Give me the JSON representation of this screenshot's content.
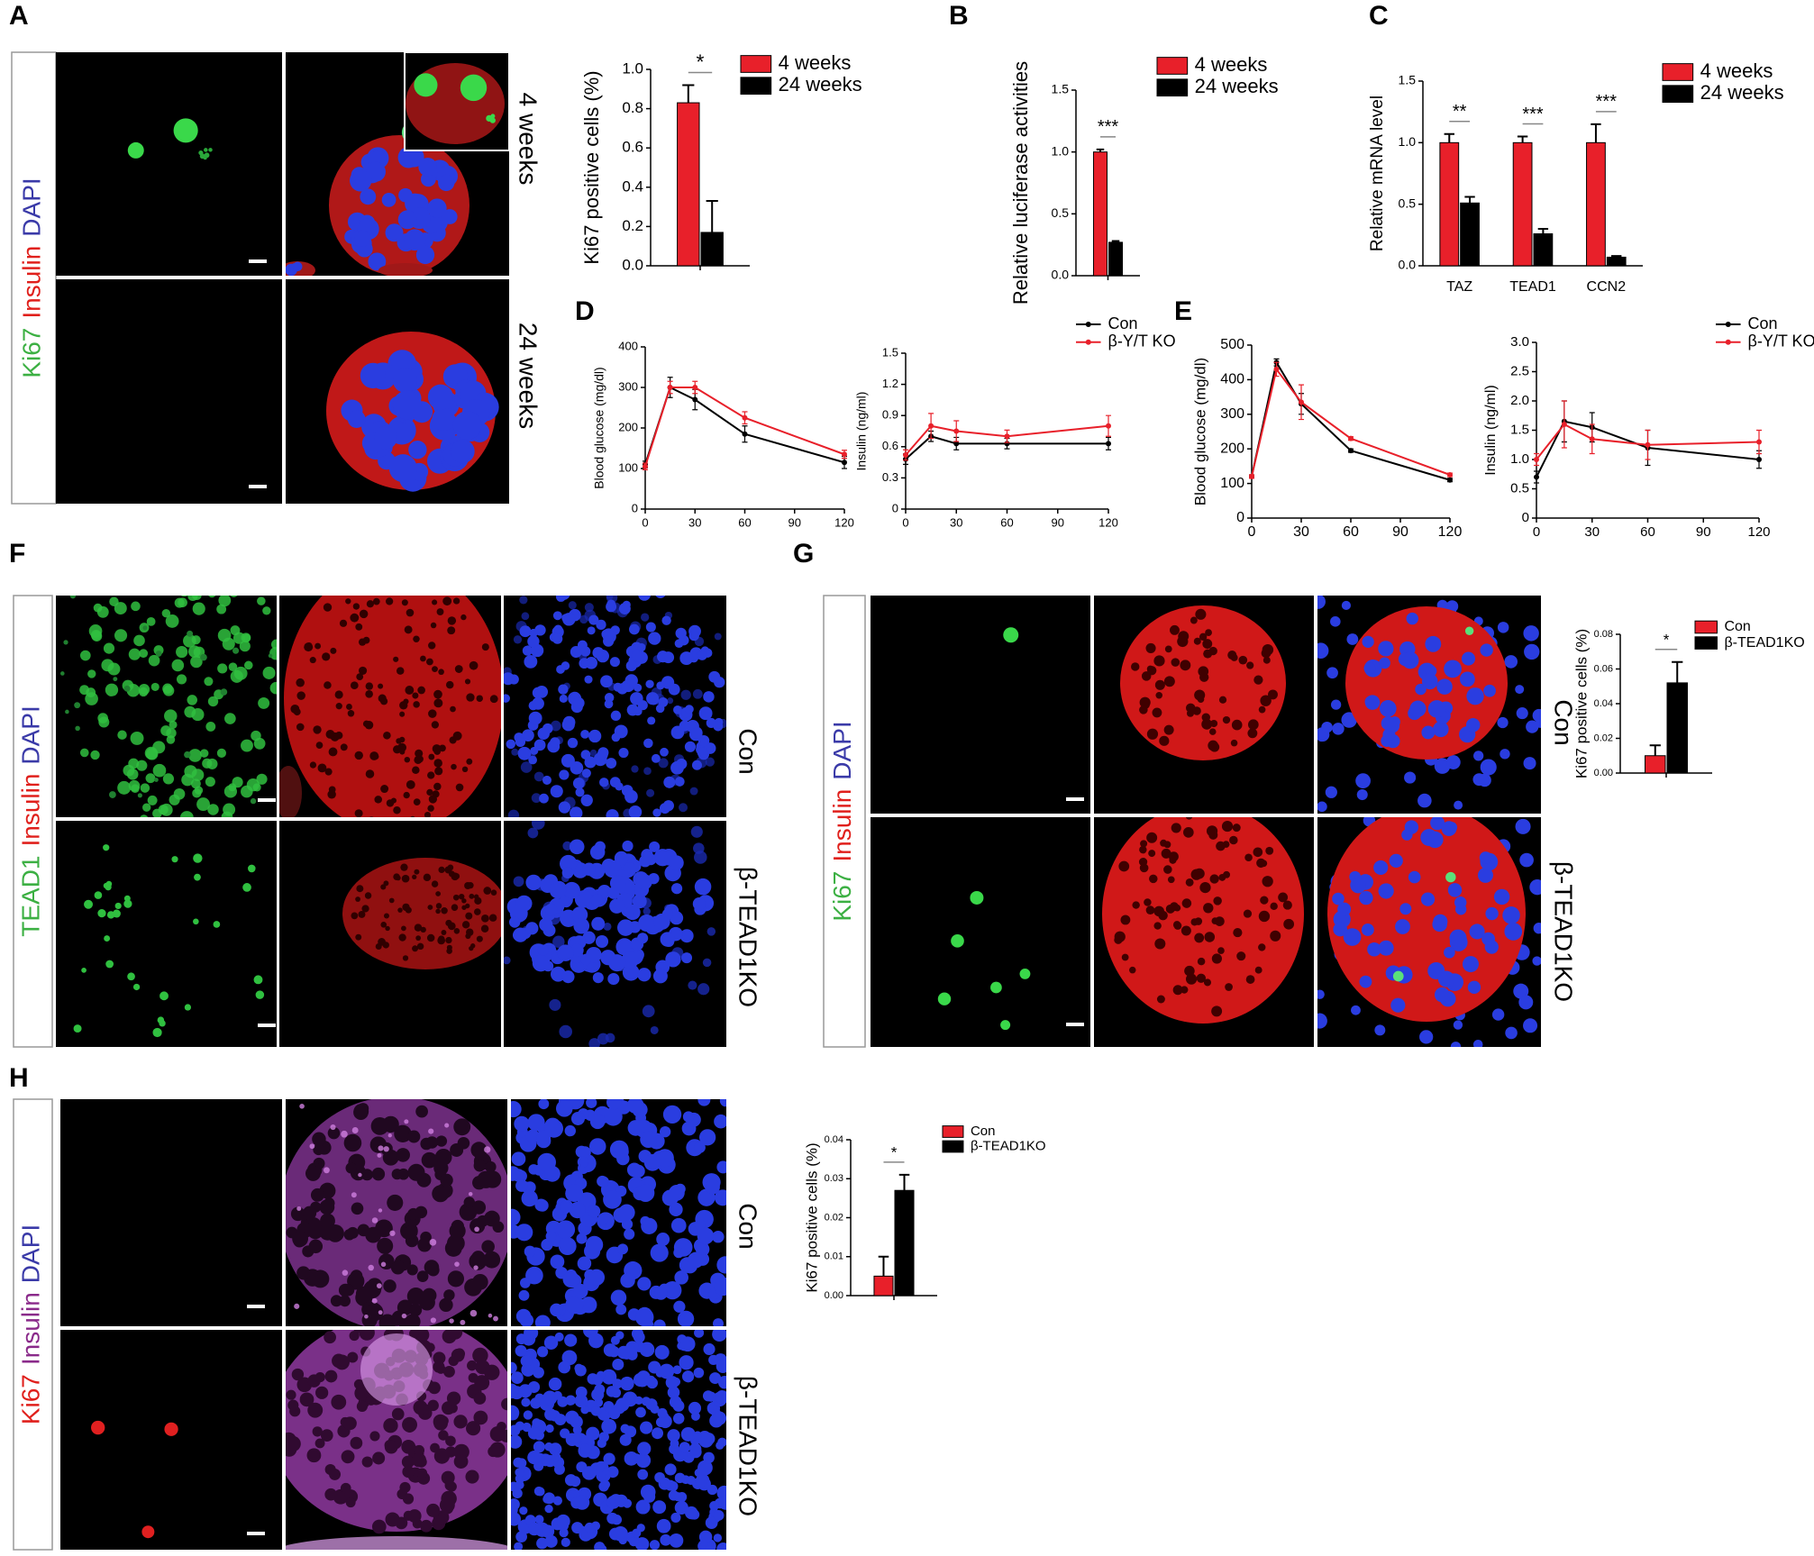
{
  "figure": {
    "A": {
      "letter": "A",
      "stains": [
        {
          "text": "Ki67",
          "color": "#3cb043"
        },
        {
          "text": "Insulin",
          "color": "#e0201c"
        },
        {
          "text": "DAPI",
          "color": "#3a3aa8"
        }
      ],
      "rows": [
        "4 weeks",
        "24 weeks"
      ]
    },
    "B": {
      "letter": "B"
    },
    "C": {
      "letter": "C"
    },
    "D": {
      "letter": "D"
    },
    "E": {
      "letter": "E"
    },
    "F": {
      "letter": "F",
      "stains": [
        {
          "text": "TEAD1",
          "color": "#3cb043"
        },
        {
          "text": "Insulin",
          "color": "#e0201c"
        },
        {
          "text": "DAPI",
          "color": "#3a3aa8"
        }
      ],
      "rows": [
        "Con",
        "β-TEAD1KO"
      ]
    },
    "G": {
      "letter": "G",
      "stains": [
        {
          "text": "Ki67",
          "color": "#3cb043"
        },
        {
          "text": "Insulin",
          "color": "#e0201c"
        },
        {
          "text": "DAPI",
          "color": "#3a3aa8"
        }
      ],
      "rows": [
        "Con",
        "β-TEAD1KO"
      ]
    },
    "H": {
      "letter": "H",
      "stains": [
        {
          "text": "Ki67",
          "color": "#e0201c"
        },
        {
          "text": "Insulin",
          "color": "#8a2a8a"
        },
        {
          "text": "DAPI",
          "color": "#3a3aa8"
        }
      ],
      "rows": [
        "Con",
        "β-TEAD1KO"
      ]
    }
  },
  "chart_data": [
    {
      "type": "bar",
      "ylabel": "Ki67 positive cells (%)",
      "categories": [
        null
      ],
      "series": [
        {
          "name": "4 weeks",
          "color": "#e8202a",
          "values": [
            0.83
          ],
          "errors": [
            0.09
          ]
        },
        {
          "name": "24 weeks",
          "color": "#000000",
          "values": [
            0.17
          ],
          "errors": [
            0.16
          ]
        }
      ],
      "ylim": [
        0,
        1.0
      ],
      "yticks": [
        {
          "value": 0,
          "label": "0.0"
        },
        0.2,
        0.4,
        0.6,
        0.8,
        {
          "value": 1,
          "label": "1.0"
        }
      ],
      "annotations": [
        "*"
      ]
    },
    {
      "type": "bar",
      "ylabel": "Relative luciferase activities",
      "categories": [
        null
      ],
      "series": [
        {
          "name": "4 weeks",
          "color": "#e8202a",
          "values": [
            1.0
          ],
          "errors": [
            0.02
          ]
        },
        {
          "name": "24 weeks",
          "color": "#000000",
          "values": [
            0.27
          ],
          "errors": [
            0.01
          ]
        }
      ],
      "ylim": [
        0,
        1.5
      ],
      "yticks": [
        {
          "value": 0,
          "label": "0.0"
        },
        0.5,
        {
          "value": 1,
          "label": "1.0"
        },
        1.5
      ],
      "annotations": [
        "***"
      ]
    },
    {
      "type": "bar",
      "ylabel": "Relative mRNA level",
      "categories": [
        "TAZ",
        "TEAD1",
        "CCN2"
      ],
      "series": [
        {
          "name": "4 weeks",
          "color": "#e8202a",
          "values": [
            1.0,
            1.0,
            1.0
          ],
          "errors": [
            0.07,
            0.05,
            0.15
          ]
        },
        {
          "name": "24 weeks",
          "color": "#000000",
          "values": [
            0.51,
            0.26,
            0.07
          ],
          "errors": [
            0.05,
            0.04,
            0.01
          ]
        }
      ],
      "ylim": [
        0,
        1.5
      ],
      "yticks": [
        {
          "value": 0,
          "label": "0.0"
        },
        0.5,
        {
          "value": 1,
          "label": "1.0"
        },
        1.5
      ],
      "annotations": [
        "**",
        "***",
        "***"
      ]
    },
    {
      "type": "line",
      "ylabel": "Blood glucose (mg/dl)",
      "x": [
        0,
        15,
        30,
        60,
        120
      ],
      "series": [
        {
          "color": "#000000",
          "values": [
            110,
            300,
            270,
            185,
            115
          ],
          "errors": [
            8,
            25,
            25,
            20,
            15
          ]
        },
        {
          "color": "#e8202a",
          "values": [
            105,
            300,
            300,
            225,
            135
          ],
          "errors": [
            8,
            15,
            15,
            15,
            10
          ]
        }
      ],
      "xlim": [
        0,
        120
      ],
      "xticks": [
        0,
        30,
        60,
        90,
        120
      ],
      "ylim": [
        0,
        400
      ],
      "yticks": [
        0,
        100,
        200,
        300,
        400
      ]
    },
    {
      "type": "line",
      "ylabel": "Insulin (ng/ml)",
      "x": [
        0,
        15,
        30,
        60,
        120
      ],
      "series": [
        {
          "name": "Con",
          "color": "#000000",
          "values": [
            0.48,
            0.7,
            0.63,
            0.63,
            0.63
          ],
          "errors": [
            0.05,
            0.05,
            0.06,
            0.05,
            0.06
          ]
        },
        {
          "name": "β-Y/T KO",
          "color": "#e8202a",
          "values": [
            0.52,
            0.8,
            0.75,
            0.7,
            0.8
          ],
          "errors": [
            0.05,
            0.12,
            0.1,
            0.06,
            0.1
          ]
        }
      ],
      "xlim": [
        0,
        120
      ],
      "xticks": [
        0,
        30,
        60,
        90,
        120
      ],
      "ylim": [
        0,
        1.5
      ],
      "yticks": [
        0,
        0.3,
        0.6,
        0.9,
        1.2,
        1.5
      ]
    },
    {
      "type": "line",
      "ylabel": "Blood glucose (mg/dl)",
      "x": [
        0,
        15,
        30,
        60,
        120
      ],
      "series": [
        {
          "color": "#000000",
          "values": [
            120,
            450,
            330,
            195,
            110
          ],
          "errors": [
            5,
            10,
            30,
            5,
            5
          ]
        },
        {
          "color": "#e8202a",
          "values": [
            120,
            430,
            335,
            230,
            125
          ],
          "errors": [
            5,
            20,
            50,
            5,
            5
          ]
        }
      ],
      "xlim": [
        0,
        120
      ],
      "xticks": [
        0,
        30,
        60,
        90,
        120
      ],
      "ylim": [
        0,
        500
      ],
      "yticks": [
        0,
        100,
        200,
        300,
        400,
        500
      ]
    },
    {
      "type": "line",
      "ylabel": "Insulin (ng/ml)",
      "x": [
        0,
        15,
        30,
        60,
        120
      ],
      "series": [
        {
          "name": "Con",
          "color": "#000000",
          "values": [
            0.7,
            1.65,
            1.55,
            1.2,
            1.0
          ],
          "errors": [
            0.1,
            0.35,
            0.25,
            0.3,
            0.15
          ]
        },
        {
          "name": "β-Y/T KO",
          "color": "#e8202a",
          "values": [
            1.0,
            1.6,
            1.35,
            1.25,
            1.3
          ],
          "errors": [
            0.1,
            0.4,
            0.25,
            0.25,
            0.2
          ]
        }
      ],
      "xlim": [
        0,
        120
      ],
      "xticks": [
        0,
        30,
        60,
        90,
        120
      ],
      "ylim": [
        0,
        3.0
      ],
      "yticks": [
        0,
        0.5,
        {
          "value": 1,
          "label": "1.0"
        },
        1.5,
        {
          "value": 2,
          "label": "2.0"
        },
        2.5,
        {
          "value": 3,
          "label": "3.0"
        }
      ]
    },
    {
      "type": "bar",
      "ylabel": "Ki67 positive cells (%)",
      "categories": [
        null
      ],
      "series": [
        {
          "name": "Con",
          "color": "#e8202a",
          "values": [
            0.01
          ],
          "errors": [
            0.006
          ]
        },
        {
          "name": "β-TEAD1KO",
          "color": "#000000",
          "values": [
            0.052
          ],
          "errors": [
            0.012
          ]
        }
      ],
      "ylim": [
        0,
        0.08
      ],
      "yticks": [
        {
          "value": 0,
          "label": "0.00"
        },
        0.02,
        0.04,
        0.06,
        0.08
      ],
      "annotations": [
        "*"
      ]
    },
    {
      "type": "bar",
      "ylabel": "Ki67 positive cells (%)",
      "categories": [
        null
      ],
      "series": [
        {
          "name": "Con",
          "color": "#e8202a",
          "values": [
            0.005
          ],
          "errors": [
            0.005
          ]
        },
        {
          "name": "β-TEAD1KO",
          "color": "#000000",
          "values": [
            0.027
          ],
          "errors": [
            0.004
          ]
        }
      ],
      "ylim": [
        0,
        0.04
      ],
      "yticks": [
        {
          "value": 0,
          "label": "0.00"
        },
        0.01,
        0.02,
        0.03,
        0.04
      ],
      "annotations": [
        "*"
      ]
    }
  ]
}
